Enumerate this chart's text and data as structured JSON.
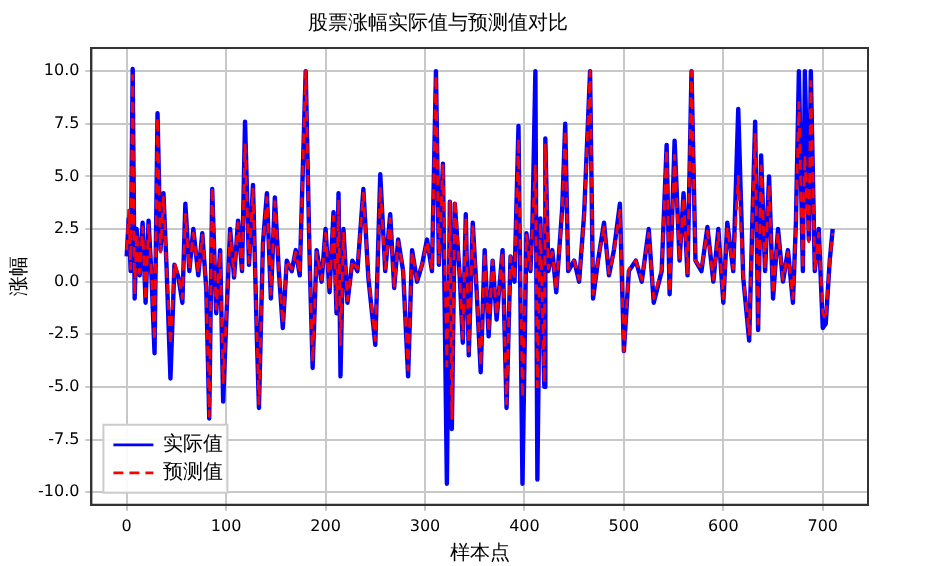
{
  "chart_data": {
    "type": "line",
    "title": "股票涨幅实际值与预测值对比",
    "xlabel": "样本点",
    "ylabel": "涨幅",
    "x": [
      0,
      2,
      4,
      6,
      8,
      10,
      13,
      16,
      19,
      22,
      25,
      28,
      31,
      34,
      37,
      40,
      44,
      48,
      52,
      56,
      59,
      63,
      67,
      72,
      76,
      80,
      83,
      86,
      90,
      94,
      97,
      100,
      104,
      108,
      112,
      116,
      119,
      123,
      127,
      131,
      133,
      137,
      141,
      145,
      149,
      153,
      157,
      161,
      166,
      170,
      174,
      180,
      184,
      187,
      191,
      196,
      200,
      204,
      208,
      211,
      213,
      215,
      218,
      222,
      227,
      232,
      238,
      243,
      250,
      255,
      260,
      265,
      269,
      273,
      278,
      283,
      287,
      292,
      297,
      302,
      307,
      311,
      314,
      318,
      322,
      325,
      327,
      330,
      335,
      338,
      341,
      344,
      348,
      352,
      356,
      360,
      364,
      368,
      372,
      378,
      382,
      386,
      390,
      394,
      398,
      402,
      406,
      408,
      411,
      413,
      416,
      420,
      421,
      424,
      428,
      432,
      438,
      441,
      444,
      450,
      455,
      460,
      466,
      469,
      474,
      480,
      485,
      490,
      496,
      500,
      505,
      512,
      518,
      525,
      530,
      538,
      543,
      546,
      551,
      556,
      560,
      564,
      568,
      572,
      578,
      584,
      590,
      595,
      600,
      604,
      610,
      615,
      620,
      626,
      629,
      632,
      635,
      638,
      642,
      646,
      650,
      655,
      660,
      665,
      670,
      673,
      676,
      680,
      682,
      686,
      688,
      692,
      696,
      700,
      703,
      707,
      710
    ],
    "series": [
      {
        "name": "实际值",
        "color": "#0000ff",
        "line_style": "solid",
        "values": [
          1.2,
          3.0,
          0.5,
          10.1,
          -0.8,
          2.5,
          0.3,
          2.8,
          -1.0,
          2.9,
          0.2,
          -3.4,
          8.0,
          1.5,
          4.2,
          0.8,
          -4.6,
          0.8,
          0.2,
          -1.0,
          3.7,
          0.5,
          2.5,
          0.3,
          2.3,
          -0.3,
          -6.5,
          4.4,
          -1.5,
          1.5,
          -5.7,
          -2.0,
          2.5,
          0.2,
          2.9,
          0.5,
          7.6,
          0.8,
          4.6,
          -2.8,
          -6.0,
          1.8,
          4.2,
          -0.8,
          4.0,
          0.5,
          -2.2,
          1.0,
          0.5,
          1.5,
          0.3,
          10.0,
          1.0,
          -4.1,
          1.5,
          0.0,
          2.5,
          -0.5,
          3.3,
          -1.5,
          4.2,
          -4.5,
          2.5,
          -1.0,
          1.0,
          0.5,
          4.4,
          0.2,
          -3.0,
          5.1,
          0.5,
          3.2,
          -0.3,
          2.0,
          0.5,
          -4.5,
          1.5,
          0.0,
          0.8,
          2.0,
          0.5,
          10.0,
          0.8,
          5.6,
          -9.6,
          3.8,
          -7.0,
          3.7,
          0.2,
          -2.9,
          3.2,
          -3.5,
          2.8,
          -0.5,
          -4.3,
          1.5,
          -2.6,
          1.0,
          -1.8,
          1.5,
          -6.0,
          1.2,
          0.0,
          7.4,
          -9.6,
          2.3,
          0.5,
          2.7,
          10.0,
          -9.4,
          3.0,
          -5.0,
          6.8,
          0.5,
          1.5,
          -0.5,
          3.5,
          7.5,
          0.5,
          1.0,
          0.0,
          3.2,
          10.0,
          -0.8,
          1.0,
          2.8,
          0.3,
          1.5,
          3.7,
          -3.3,
          0.5,
          1.0,
          0.0,
          2.5,
          -1.0,
          0.5,
          6.5,
          -0.6,
          6.7,
          1.0,
          4.2,
          0.3,
          10.0,
          1.0,
          0.5,
          2.6,
          0.0,
          2.5,
          -1.0,
          2.8,
          0.5,
          8.2,
          0.2,
          -2.8,
          2.5,
          7.6,
          -2.3,
          6.0,
          0.5,
          5.0,
          -0.8,
          2.5,
          0.0,
          1.5,
          -1.0,
          2.8,
          10.0,
          0.5,
          10.0,
          2.0,
          10.0,
          0.5,
          2.5,
          -2.2,
          -2.0,
          1.0,
          2.5
        ]
      },
      {
        "name": "预测值",
        "color": "#ff0000",
        "line_style": "dashed",
        "values": [
          1.5,
          3.4,
          0.6,
          9.8,
          -0.6,
          2.3,
          0.4,
          2.6,
          -0.9,
          2.7,
          0.3,
          -2.8,
          7.8,
          1.4,
          4.0,
          0.8,
          -3.0,
          0.9,
          0.3,
          -0.8,
          3.2,
          0.6,
          2.3,
          0.4,
          2.2,
          -0.2,
          -6.4,
          4.5,
          -1.3,
          1.4,
          -4.8,
          -1.8,
          2.3,
          0.3,
          2.8,
          0.6,
          6.5,
          0.9,
          4.4,
          -2.5,
          -5.8,
          1.7,
          4.0,
          -0.6,
          3.8,
          0.6,
          -2.0,
          1.0,
          0.6,
          1.4,
          0.4,
          10.0,
          1.0,
          -3.8,
          1.4,
          0.1,
          2.3,
          -0.4,
          3.1,
          -1.3,
          3.9,
          -3.0,
          2.3,
          -0.9,
          1.0,
          0.6,
          4.2,
          0.3,
          -2.8,
          4.5,
          0.6,
          3.0,
          -0.2,
          1.9,
          0.6,
          -4.2,
          1.4,
          0.1,
          0.8,
          1.9,
          0.6,
          9.8,
          0.9,
          5.6,
          -4.0,
          3.8,
          -6.5,
          3.9,
          0.3,
          -2.7,
          3.0,
          -3.3,
          2.6,
          -0.4,
          -4.0,
          1.4,
          -2.4,
          1.0,
          -1.6,
          1.4,
          -5.8,
          1.2,
          0.1,
          6.8,
          -5.5,
          2.2,
          0.6,
          2.6,
          5.5,
          -5.0,
          2.8,
          -4.8,
          6.5,
          0.6,
          1.4,
          -0.4,
          3.3,
          7.2,
          0.6,
          1.0,
          0.1,
          3.0,
          10.0,
          -0.6,
          1.0,
          2.6,
          0.4,
          1.4,
          3.4,
          -3.3,
          0.6,
          1.0,
          0.1,
          2.3,
          -0.8,
          0.6,
          6.3,
          -0.5,
          6.0,
          1.0,
          4.0,
          0.4,
          10.0,
          1.0,
          0.6,
          2.4,
          0.1,
          2.3,
          -0.8,
          2.6,
          0.6,
          5.0,
          0.3,
          -2.5,
          2.3,
          7.0,
          -2.0,
          5.5,
          0.6,
          4.6,
          -0.6,
          2.3,
          0.1,
          1.4,
          -0.8,
          2.6,
          8.5,
          0.6,
          6.0,
          1.9,
          9.5,
          0.6,
          2.3,
          -1.5,
          -1.8,
          1.0,
          2.3
        ]
      }
    ],
    "xlim": [
      -35.5,
      745.5
    ],
    "ylim": [
      -10.6,
      11.1
    ],
    "xticks": [
      0,
      100,
      200,
      300,
      400,
      500,
      600,
      700
    ],
    "yticks": [
      {
        "value": -10,
        "label": "-10.0"
      },
      {
        "value": -7.5,
        "label": "-7.5"
      },
      {
        "value": -5,
        "label": "-5.0"
      },
      {
        "value": -2.5,
        "label": "-2.5"
      },
      {
        "value": 0,
        "label": "0.0"
      },
      {
        "value": 2.5,
        "label": "2.5"
      },
      {
        "value": 5,
        "label": "5.0"
      },
      {
        "value": 7.5,
        "label": "7.5"
      },
      {
        "value": 10,
        "label": "10.0"
      }
    ],
    "grid": true,
    "legend": "bottom left",
    "marker": "none"
  }
}
